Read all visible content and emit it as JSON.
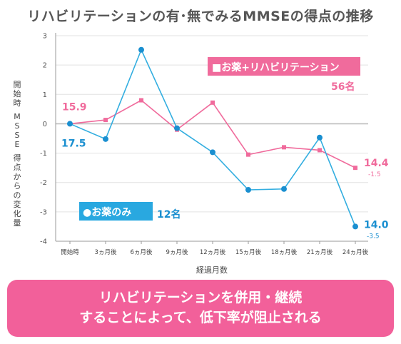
{
  "title": "リハビリテーションの有･無でみるMMSEの得点の推移",
  "y_axis_label_lines": [
    "開",
    "始",
    "時",
    "M",
    "S",
    "S",
    "E",
    "得",
    "点",
    "か",
    "ら",
    "の",
    "変",
    "化",
    "量"
  ],
  "chart_data": {
    "type": "line",
    "categories": [
      "開始時",
      "3ヵ月後",
      "6ヵ月後",
      "9ヵ月後",
      "12ヵ月後",
      "15ヵ月後",
      "18ヵ月後",
      "21ヵ月後",
      "24ヵ月後"
    ],
    "xlabel": "経過月数",
    "ylim": [
      -4,
      3
    ],
    "yticks": [
      "3",
      "2",
      "1",
      "0",
      "-1",
      "-2",
      "-3",
      "-4"
    ],
    "grid": "horizontal",
    "series": [
      {
        "name": "お薬+リハビリテーション",
        "color": "#f06b9c",
        "values": [
          0,
          0.13,
          0.8,
          -0.2,
          0.72,
          -1.05,
          -0.8,
          -0.9,
          -1.5
        ],
        "legend_label": "■お薬+リハビリテーション",
        "count_label": "56名",
        "start_label": "15.9",
        "end_label": "14.4",
        "end_change_label": "-1.5"
      },
      {
        "name": "お薬のみ",
        "color": "#33aee0",
        "values": [
          0,
          -0.52,
          2.52,
          -0.15,
          -0.97,
          -2.25,
          -2.22,
          -0.47,
          -3.5
        ],
        "legend_label": "●お薬のみ",
        "count_label": "12名",
        "start_label": "17.5",
        "end_label": "14.0",
        "end_change_label": "-3.5"
      }
    ]
  },
  "banner": {
    "line1": "リハビリテーションを併用・継続",
    "line2": "することによって、低下率が阻止される"
  }
}
